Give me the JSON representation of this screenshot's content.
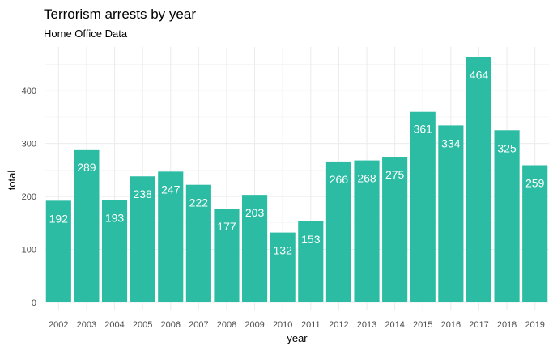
{
  "chart_data": {
    "type": "bar",
    "title": "Terrorism arrests by year",
    "subtitle": "Home Office Data",
    "xlabel": "year",
    "ylabel": "total",
    "categories": [
      "2002",
      "2003",
      "2004",
      "2005",
      "2006",
      "2007",
      "2008",
      "2009",
      "2010",
      "2011",
      "2012",
      "2013",
      "2014",
      "2015",
      "2016",
      "2017",
      "2018",
      "2019"
    ],
    "values": [
      192,
      289,
      193,
      238,
      247,
      222,
      177,
      203,
      132,
      153,
      266,
      268,
      275,
      361,
      334,
      464,
      325,
      259
    ],
    "yticks": [
      0,
      100,
      200,
      300,
      400
    ],
    "ylim": [
      0,
      487
    ],
    "bar_color": "#2cbca3",
    "label_color": "#ffffff",
    "grid": true
  }
}
